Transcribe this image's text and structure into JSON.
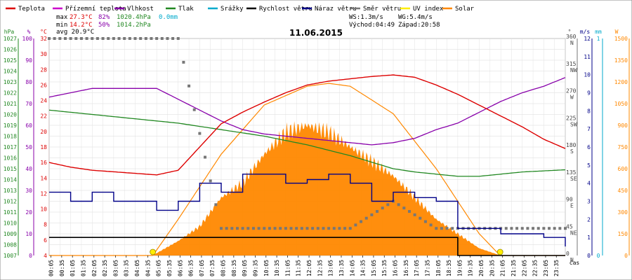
{
  "legend": [
    {
      "label": "Teplota",
      "color": "#dd0000"
    },
    {
      "label": "Přízemní teplota",
      "color": "#cc00cc"
    },
    {
      "label": "Vlhkost",
      "color": "#8800aa"
    },
    {
      "label": "Tlak",
      "color": "#228822"
    },
    {
      "label": "Srážky",
      "color": "#00aacc"
    },
    {
      "label": "Rychlost větru",
      "color": "#000000"
    },
    {
      "label": "Náraz větru",
      "color": "#000088"
    },
    {
      "label": "Směr větru",
      "color": "#777777"
    },
    {
      "label": "UV index",
      "color": "#ffee00"
    },
    {
      "label": "Solar",
      "color": "#ff8800"
    }
  ],
  "stats": {
    "max_label": "max",
    "max_temp": "27.3°C",
    "max_hum": "82%",
    "max_press": "1020.4hPa",
    "rain": "0.0mm",
    "min_label": "min",
    "min_temp": "14.2°C",
    "min_hum": "50%",
    "min_press": "1014.2hPa",
    "avg": "avg 20.9°C",
    "ws": "WS:1.3m/s",
    "wg": "WG:5.4m/s",
    "sunrise": "Východ:04:49",
    "sunset": "Západ:20:58"
  },
  "date": "11.06.2015",
  "axes": {
    "unit_hpa": "hPa",
    "unit_pct": "%",
    "unit_c": "°C",
    "unit_deg": "°",
    "unit_ms": "m/s",
    "unit_mm": "mm",
    "unit_w": "W",
    "cas": "čas",
    "hpa_ticks": [
      "1027",
      "1026",
      "1025",
      "1024",
      "1023",
      "1022",
      "1021",
      "1020",
      "1019",
      "1018",
      "1017",
      "1016",
      "1015",
      "1014",
      "1013",
      "1012",
      "1011",
      "1010",
      "1009",
      "1008",
      "1007"
    ],
    "pct_ticks": [
      "100",
      "90",
      "80",
      "70",
      "60",
      "50",
      "40",
      "30",
      "20",
      "10",
      "0"
    ],
    "c_ticks": [
      "32",
      "30",
      "28",
      "26",
      "24",
      "22",
      "20",
      "18",
      "16",
      "14",
      "12",
      "10",
      "8",
      "6",
      "4"
    ],
    "deg_ticks": [
      "360",
      "315",
      "270",
      "225",
      "180",
      "135",
      "90",
      "45",
      "0"
    ],
    "dir_ticks": [
      "N",
      "NW",
      "W",
      "SW",
      "S",
      "SE",
      "E",
      "NE",
      "N"
    ],
    "ms_ticks": [
      "12",
      "11",
      "10",
      "9",
      "8",
      "7",
      "6",
      "5",
      "4",
      "3",
      "2",
      "1",
      "0"
    ],
    "mm_ticks": [
      "1",
      "0"
    ],
    "w_ticks": [
      "1500",
      "1350",
      "1200",
      "1050",
      "900",
      "750",
      "600",
      "450",
      "300",
      "150",
      "0"
    ],
    "time_ticks": [
      "00:05",
      "00:35",
      "01:05",
      "01:35",
      "02:05",
      "02:35",
      "03:05",
      "03:35",
      "04:05",
      "04:35",
      "05:05",
      "05:35",
      "06:05",
      "06:35",
      "07:05",
      "07:35",
      "08:05",
      "08:35",
      "09:05",
      "09:35",
      "10:05",
      "10:35",
      "11:05",
      "11:35",
      "12:05",
      "12:35",
      "13:05",
      "13:35",
      "14:05",
      "14:35",
      "15:05",
      "15:35",
      "16:05",
      "16:35",
      "17:05",
      "17:35",
      "18:05",
      "18:35",
      "19:05",
      "19:35",
      "20:05",
      "20:35",
      "21:05",
      "21:35",
      "22:05",
      "22:35",
      "23:05",
      "23:35"
    ]
  },
  "chart_data": {
    "type": "line",
    "title": "11.06.2015",
    "x_unit": "hour",
    "xlim": [
      0,
      24
    ],
    "temperature_c": {
      "range": [
        4,
        32
      ],
      "x": [
        0,
        1,
        2,
        3,
        4,
        5,
        6,
        7,
        8,
        9,
        10,
        11,
        12,
        13,
        14,
        15,
        16,
        17,
        18,
        19,
        20,
        21,
        22,
        23,
        24
      ],
      "values": [
        16,
        15.4,
        15,
        14.8,
        14.6,
        14.4,
        15,
        18,
        21,
        22.5,
        23.8,
        25,
        26,
        26.5,
        26.8,
        27.1,
        27.3,
        27,
        26,
        24.8,
        23.4,
        22,
        20.6,
        19,
        17.8
      ]
    },
    "humidity_pct": {
      "range": [
        0,
        100
      ],
      "x": [
        0,
        1,
        2,
        3,
        4,
        5,
        6,
        7,
        8,
        9,
        10,
        11,
        12,
        13,
        14,
        15,
        16,
        17,
        18,
        19,
        20,
        21,
        22,
        23,
        24
      ],
      "values": [
        73,
        75,
        77,
        77,
        77,
        77,
        72,
        67,
        62,
        58,
        56,
        55,
        54,
        53,
        52,
        51,
        52,
        54,
        58,
        61,
        66,
        71,
        75,
        78,
        82
      ]
    },
    "pressure_hpa": {
      "range": [
        1007,
        1027
      ],
      "x": [
        0,
        1,
        2,
        3,
        4,
        5,
        6,
        7,
        8,
        9,
        10,
        11,
        12,
        13,
        14,
        15,
        16,
        17,
        18,
        19,
        20,
        21,
        22,
        23,
        24
      ],
      "values": [
        1020.4,
        1020.2,
        1020.0,
        1019.8,
        1019.6,
        1019.4,
        1019.2,
        1018.9,
        1018.6,
        1018.3,
        1018.0,
        1017.6,
        1017.2,
        1016.7,
        1016.2,
        1015.6,
        1015.0,
        1014.7,
        1014.5,
        1014.3,
        1014.3,
        1014.5,
        1014.7,
        1014.8,
        1014.9
      ]
    },
    "wind_speed_ms": {
      "range": [
        0,
        12
      ],
      "x": [
        0,
        1,
        2,
        3,
        4,
        5,
        6,
        7,
        8,
        9,
        10,
        11,
        12,
        13,
        14,
        15,
        16,
        17,
        18,
        19,
        20,
        21,
        22,
        23,
        24
      ],
      "values": [
        1,
        1,
        1,
        1,
        1,
        1,
        1,
        1,
        1,
        1,
        1,
        1,
        1,
        1,
        1,
        1,
        1,
        1,
        1,
        0,
        0,
        0,
        0,
        0,
        0
      ]
    },
    "wind_gust_ms": {
      "range": [
        0,
        12
      ],
      "x": [
        0,
        1,
        2,
        3,
        4,
        5,
        6,
        7,
        8,
        9,
        10,
        11,
        12,
        13,
        14,
        15,
        16,
        17,
        18,
        19,
        20,
        21,
        22,
        23,
        24
      ],
      "values": [
        3.5,
        3,
        3.5,
        3,
        3,
        2.5,
        3,
        4,
        3.5,
        4.5,
        4.5,
        4,
        4.2,
        4.5,
        4,
        3,
        3.5,
        3.2,
        3,
        1.5,
        1.5,
        1.2,
        1.2,
        1,
        0.5
      ]
    },
    "wind_dir_deg": {
      "range": [
        0,
        360
      ],
      "x": [
        0,
        2,
        4,
        6,
        8,
        10,
        12,
        14,
        16,
        18,
        20,
        22,
        24
      ],
      "values": [
        360,
        360,
        360,
        360,
        45,
        45,
        45,
        45,
        90,
        45,
        45,
        45,
        45
      ]
    },
    "solar_wm2": {
      "range": [
        0,
        1500
      ],
      "x": [
        4.8,
        6,
        7,
        8,
        9,
        10,
        11,
        12,
        13,
        14,
        15,
        16,
        17,
        18,
        19,
        20,
        21
      ],
      "values": [
        0,
        100,
        200,
        400,
        500,
        700,
        850,
        900,
        850,
        750,
        650,
        550,
        400,
        250,
        150,
        50,
        0
      ]
    },
    "theoretical_solar_wm2": {
      "range": [
        0,
        1500
      ],
      "x": [
        4.82,
        6,
        8,
        10,
        12,
        13,
        14,
        16,
        18,
        20,
        20.97
      ],
      "values": [
        0,
        250,
        700,
        1040,
        1170,
        1190,
        1170,
        980,
        600,
        150,
        0
      ]
    },
    "uv_index": {
      "x": [
        4.82,
        20.97
      ],
      "values": [
        0,
        0
      ]
    },
    "rain_mm": {
      "range": [
        0,
        1
      ],
      "total": 0.0
    }
  }
}
